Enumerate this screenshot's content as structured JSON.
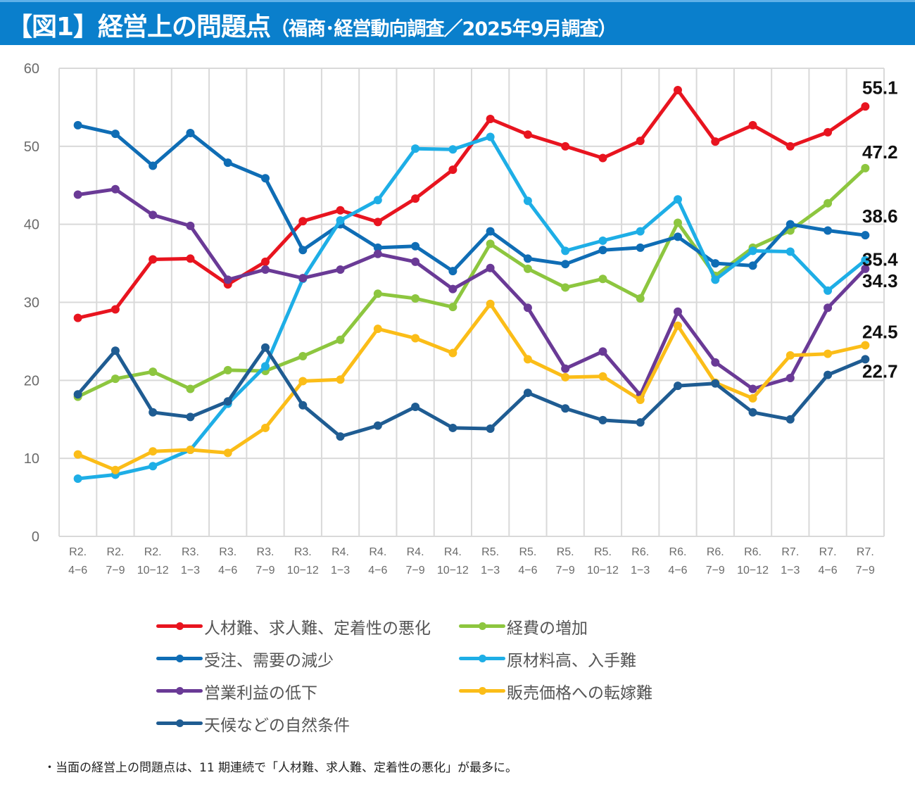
{
  "header": {
    "title_main": "【図1】経営上の問題点",
    "title_sub": "（福商･経営動向調査／2025年9月調査）"
  },
  "chart_data": {
    "type": "line",
    "title": "経営上の問題点（福商･経営動向調査／2025年9月調査）",
    "xlabel": "",
    "ylabel": "",
    "ylim": [
      0,
      60
    ],
    "yticks": [
      "0",
      "10",
      "20",
      "30",
      "40",
      "50",
      "60"
    ],
    "grid": true,
    "legend_position": "bottom",
    "categories": [
      {
        "l1": "R2.",
        "l2": "4-6"
      },
      {
        "l1": "R2.",
        "l2": "7-9"
      },
      {
        "l1": "R2.",
        "l2": "10-12"
      },
      {
        "l1": "R3.",
        "l2": "1-3"
      },
      {
        "l1": "R3.",
        "l2": "4-6"
      },
      {
        "l1": "R3.",
        "l2": "7-9"
      },
      {
        "l1": "R3.",
        "l2": "10-12"
      },
      {
        "l1": "R4.",
        "l2": "1-3"
      },
      {
        "l1": "R4.",
        "l2": "4-6"
      },
      {
        "l1": "R4.",
        "l2": "7-9"
      },
      {
        "l1": "R4.",
        "l2": "10-12"
      },
      {
        "l1": "R5.",
        "l2": "1-3"
      },
      {
        "l1": "R5.",
        "l2": "4-6"
      },
      {
        "l1": "R5.",
        "l2": "7-9"
      },
      {
        "l1": "R5.",
        "l2": "10-12"
      },
      {
        "l1": "R6.",
        "l2": "1-3"
      },
      {
        "l1": "R6.",
        "l2": "4-6"
      },
      {
        "l1": "R6.",
        "l2": "7-9"
      },
      {
        "l1": "R6.",
        "l2": "10-12"
      },
      {
        "l1": "R7.",
        "l2": "1-3"
      },
      {
        "l1": "R7.",
        "l2": "4-6"
      },
      {
        "l1": "R7.",
        "l2": "7-9"
      }
    ],
    "series": [
      {
        "name": "人材難、求人難、定着性の悪化",
        "color": "#e8141f",
        "end_label": "55.1",
        "values": [
          28.0,
          29.1,
          35.5,
          35.6,
          32.3,
          35.2,
          40.4,
          41.8,
          40.3,
          43.3,
          47.0,
          53.5,
          51.5,
          50.0,
          48.5,
          50.7,
          57.2,
          50.6,
          52.7,
          50.0,
          51.8,
          55.1
        ]
      },
      {
        "name": "経費の増加",
        "color": "#8dc63f",
        "end_label": "47.2",
        "values": [
          17.9,
          20.2,
          21.1,
          18.9,
          21.3,
          21.2,
          23.1,
          25.2,
          31.1,
          30.5,
          29.4,
          37.5,
          34.3,
          31.9,
          33.0,
          30.5,
          40.2,
          33.4,
          37.0,
          39.2,
          42.7,
          47.2
        ]
      },
      {
        "name": "受注、需要の減少",
        "color": "#0f6db5",
        "end_label": "38.6",
        "values": [
          52.7,
          51.6,
          47.5,
          51.7,
          47.9,
          45.9,
          36.7,
          40.0,
          37.0,
          37.2,
          34.0,
          39.1,
          35.6,
          34.9,
          36.7,
          37.0,
          38.4,
          35.0,
          34.7,
          40.0,
          39.2,
          38.6
        ]
      },
      {
        "name": "原材料高、入手難",
        "color": "#1eaee6",
        "end_label": "35.4",
        "values": [
          7.4,
          7.9,
          9.0,
          11.1,
          17.0,
          21.8,
          33.0,
          40.5,
          43.1,
          49.7,
          49.6,
          51.2,
          43.0,
          36.6,
          37.9,
          39.1,
          43.2,
          32.9,
          36.6,
          36.5,
          31.5,
          35.4
        ]
      },
      {
        "name": "営業利益の低下",
        "color": "#6a3a96",
        "end_label": "34.3",
        "values": [
          43.8,
          44.5,
          41.2,
          39.8,
          32.9,
          34.2,
          33.1,
          34.2,
          36.2,
          35.2,
          31.7,
          34.4,
          29.3,
          21.5,
          23.7,
          18.1,
          28.8,
          22.3,
          18.9,
          20.3,
          29.3,
          34.3
        ]
      },
      {
        "name": "販売価格への転嫁難",
        "color": "#fbbd18",
        "end_label": "24.5",
        "values": [
          10.5,
          8.5,
          10.9,
          11.1,
          10.7,
          13.9,
          19.9,
          20.1,
          26.6,
          25.4,
          23.5,
          29.8,
          22.7,
          20.4,
          20.5,
          17.5,
          27.0,
          19.7,
          17.7,
          23.2,
          23.4,
          24.5
        ]
      },
      {
        "name": "天候などの自然条件",
        "color": "#1f5c92",
        "end_label": "22.7",
        "values": [
          18.2,
          23.8,
          15.9,
          15.3,
          17.3,
          24.2,
          16.8,
          12.8,
          14.2,
          16.6,
          13.9,
          13.8,
          18.4,
          16.4,
          14.9,
          14.6,
          19.3,
          19.6,
          15.9,
          15.0,
          20.7,
          22.7
        ]
      }
    ]
  },
  "footnote": "・当面の経営上の問題点は、11 期連続で「人材難、求人難、定着性の悪化」が最多に。"
}
